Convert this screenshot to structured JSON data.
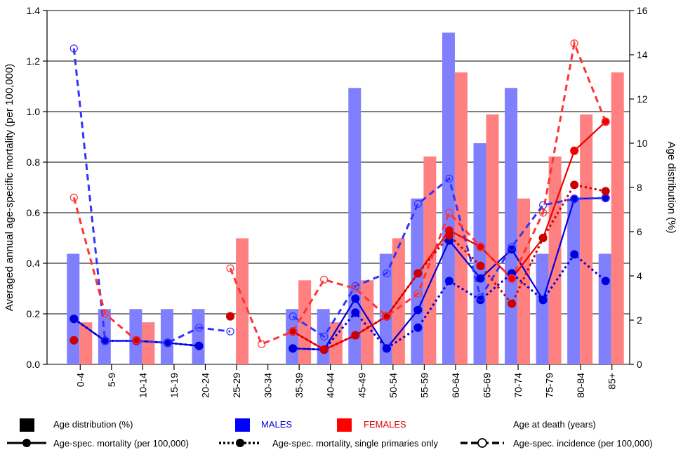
{
  "chart_data": {
    "type": "bar",
    "categories": [
      "0-4",
      "5-9",
      "10-14",
      "15-19",
      "20-24",
      "25-29",
      "30-34",
      "35-39",
      "40-44",
      "45-49",
      "50-54",
      "55-59",
      "60-64",
      "65-69",
      "70-74",
      "75-79",
      "80-84",
      "85+"
    ],
    "xlabel": "Age at death (years)",
    "ylabel": "Averaged annual age-specific mortality (per 100,000)",
    "y2label": "Age distribution (%)",
    "ylim": [
      0,
      1.4
    ],
    "y2lim": [
      0,
      16
    ],
    "yticks": [
      "0.0",
      "0.2",
      "0.4",
      "0.6",
      "0.8",
      "1.0",
      "1.2",
      "1.4"
    ],
    "y2ticks": [
      "0",
      "2",
      "4",
      "6",
      "8",
      "10",
      "12",
      "14",
      "16"
    ],
    "grid": true,
    "bar_series": [
      {
        "name": "MALES",
        "axis": "right",
        "color": "#8080ff",
        "values": [
          5.0,
          2.5,
          2.5,
          2.5,
          2.5,
          0,
          0,
          2.5,
          2.5,
          12.5,
          5.0,
          7.5,
          15.0,
          10.0,
          12.5,
          5.0,
          7.5,
          5.0
        ]
      },
      {
        "name": "FEMALES",
        "axis": "right",
        "color": "#ff8080",
        "values": [
          1.9,
          0,
          1.9,
          0,
          0,
          5.7,
          0,
          3.8,
          1.9,
          3.8,
          5.7,
          9.4,
          13.2,
          11.3,
          7.5,
          9.4,
          11.3,
          13.2
        ]
      }
    ],
    "line_series": [
      {
        "name": "Males age-spec. mortality",
        "sex": "MALES",
        "style": "solid",
        "marker": "filled",
        "color": "#0000dd",
        "values": [
          0.18,
          0.093,
          0.093,
          0.085,
          0.073,
          null,
          null,
          0.063,
          0.058,
          0.26,
          0.063,
          0.215,
          0.49,
          0.34,
          0.455,
          0.255,
          0.655,
          0.658
        ]
      },
      {
        "name": "Males age-spec. mortality, single primaries only",
        "sex": "MALES",
        "style": "dotted",
        "marker": "filled",
        "color": "#0000dd",
        "values": [
          0.18,
          0.093,
          0.093,
          0.085,
          0.073,
          null,
          null,
          0.063,
          0.058,
          0.205,
          0.063,
          0.145,
          0.33,
          0.255,
          0.36,
          0.255,
          0.435,
          0.33
        ]
      },
      {
        "name": "Males age-spec. incidence",
        "sex": "MALES",
        "style": "dashed",
        "marker": "open",
        "color": "#3333ff",
        "values": [
          1.25,
          0.093,
          0.093,
          0.085,
          0.145,
          0.13,
          null,
          0.19,
          0.11,
          0.31,
          0.36,
          0.635,
          0.735,
          0.265,
          0.465,
          0.63,
          0.655,
          0.658
        ]
      },
      {
        "name": "Females age-spec. mortality",
        "sex": "FEMALES",
        "style": "solid",
        "marker": "filled",
        "color": "#ee0000",
        "values": [
          0.095,
          null,
          0.095,
          null,
          null,
          0.19,
          null,
          0.13,
          0.058,
          0.115,
          0.19,
          0.36,
          0.53,
          0.465,
          0.34,
          0.5,
          0.845,
          0.96
        ]
      },
      {
        "name": "Females age-spec. mortality, single primaries only",
        "sex": "FEMALES",
        "style": "dotted",
        "marker": "filled",
        "color": "#cc0000",
        "values": [
          0.095,
          null,
          0.095,
          null,
          null,
          0.19,
          null,
          0.13,
          0.058,
          0.115,
          0.19,
          0.36,
          0.51,
          0.39,
          0.24,
          0.5,
          0.71,
          0.685
        ]
      },
      {
        "name": "Females age-spec. incidence",
        "sex": "FEMALES",
        "style": "dashed",
        "marker": "open",
        "color": "#ff3333",
        "values": [
          0.66,
          0.2,
          0.095,
          null,
          null,
          0.38,
          0.08,
          0.13,
          0.335,
          0.3,
          0.19,
          0.28,
          0.6,
          0.465,
          0.34,
          0.6,
          1.27,
          0.96
        ]
      }
    ]
  },
  "legend": {
    "age_distribution": "Age distribution (%)",
    "males": "MALES",
    "females": "FEMALES",
    "age_at_death": "Age at death (years)",
    "mortality": "Age-spec. mortality (per 100,000)",
    "mortality_single": "Age-spec. mortality, single primaries only",
    "incidence": "Age-spec. incidence (per 100,000)",
    "colors": {
      "black": "#000000",
      "males": "#0000ff",
      "females": "#ff0000",
      "males_text": "#0000cc",
      "females_text": "#dd0000"
    }
  }
}
